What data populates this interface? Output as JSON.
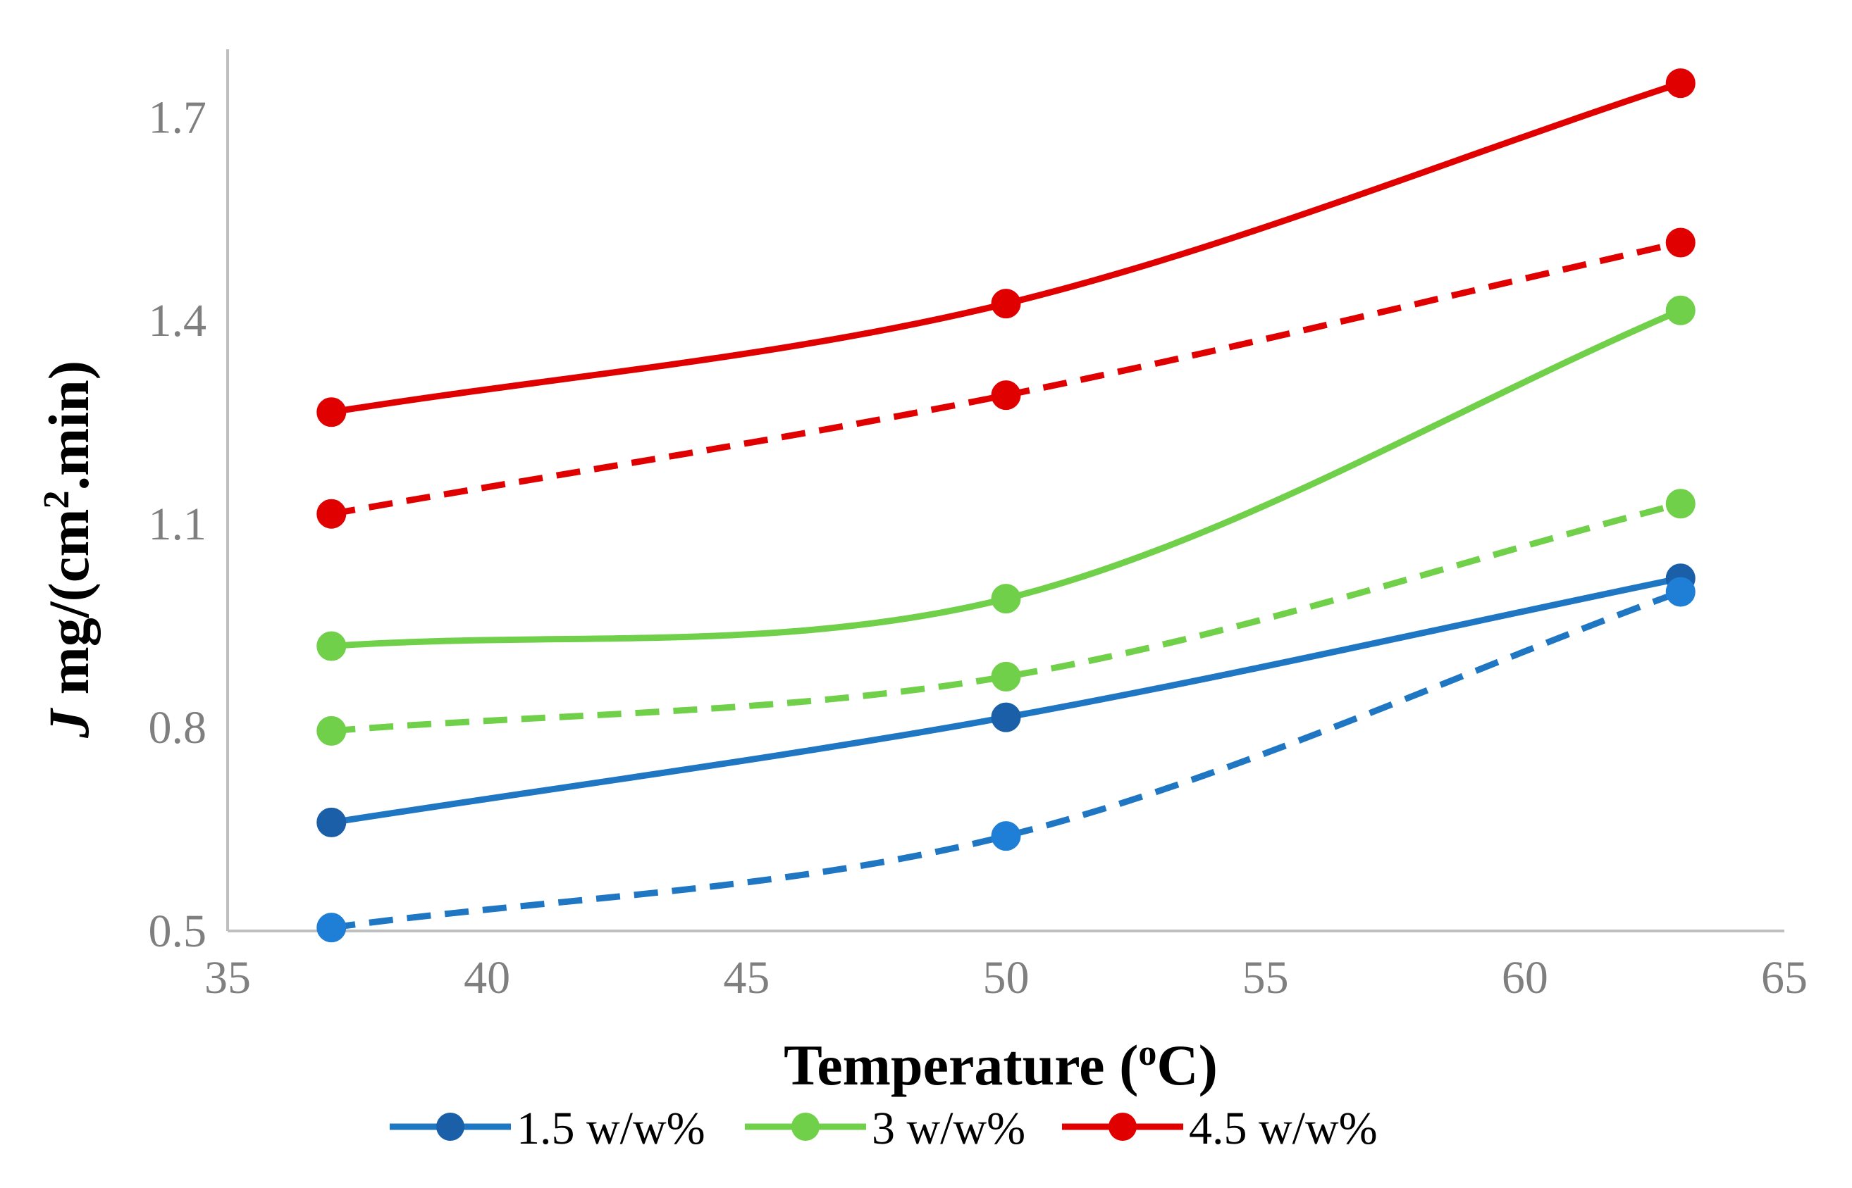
{
  "chart_data": {
    "type": "line",
    "title": "",
    "xlabel": "Temperature (oC)",
    "xlabel_parts": {
      "pre": "Temperature (",
      "sup": "o",
      "post": "C)"
    },
    "ylabel": "J mg/(cm2.min)",
    "ylabel_parts": {
      "italic": "J",
      "pre": " mg/(cm",
      "sup": "2",
      "post": ".min)"
    },
    "xlim": [
      35,
      65
    ],
    "ylim": [
      0.5,
      1.8
    ],
    "x_ticks": [
      35,
      40,
      45,
      50,
      55,
      60,
      65
    ],
    "y_ticks": [
      0.5,
      0.8,
      1.1,
      1.4,
      1.7
    ],
    "y_tick_labels": [
      "0.5",
      "0.8",
      "1.1",
      "1.4",
      "1.7"
    ],
    "grid": false,
    "legend_position": "bottom",
    "x": [
      37,
      50,
      63
    ],
    "series": [
      {
        "name": "1.5 w/w%",
        "style": "solid",
        "color": "#1f77c4",
        "marker_color": "#1a5fa8",
        "values": [
          0.66,
          0.815,
          1.02
        ],
        "in_legend": true
      },
      {
        "name": "1.5 w/w% (dashed)",
        "style": "dashed",
        "color": "#1f77c4",
        "marker_color": "#1f7fd6",
        "values": [
          0.505,
          0.64,
          1.0
        ],
        "in_legend": false
      },
      {
        "name": "3 w/w%",
        "style": "solid",
        "color": "#70d04a",
        "marker_color": "#70d04a",
        "values": [
          0.92,
          0.99,
          1.415
        ],
        "in_legend": true
      },
      {
        "name": "3 w/w% (dashed)",
        "style": "dashed",
        "color": "#70d04a",
        "marker_color": "#70d04a",
        "values": [
          0.795,
          0.875,
          1.13
        ],
        "in_legend": false
      },
      {
        "name": "4.5 w/w%",
        "style": "solid",
        "color": "#e00000",
        "marker_color": "#e00000",
        "values": [
          1.265,
          1.425,
          1.75
        ],
        "in_legend": true
      },
      {
        "name": "4.5 w/w% (dashed)",
        "style": "dashed",
        "color": "#e00000",
        "marker_color": "#e00000",
        "values": [
          1.115,
          1.29,
          1.515
        ],
        "in_legend": false
      }
    ]
  }
}
